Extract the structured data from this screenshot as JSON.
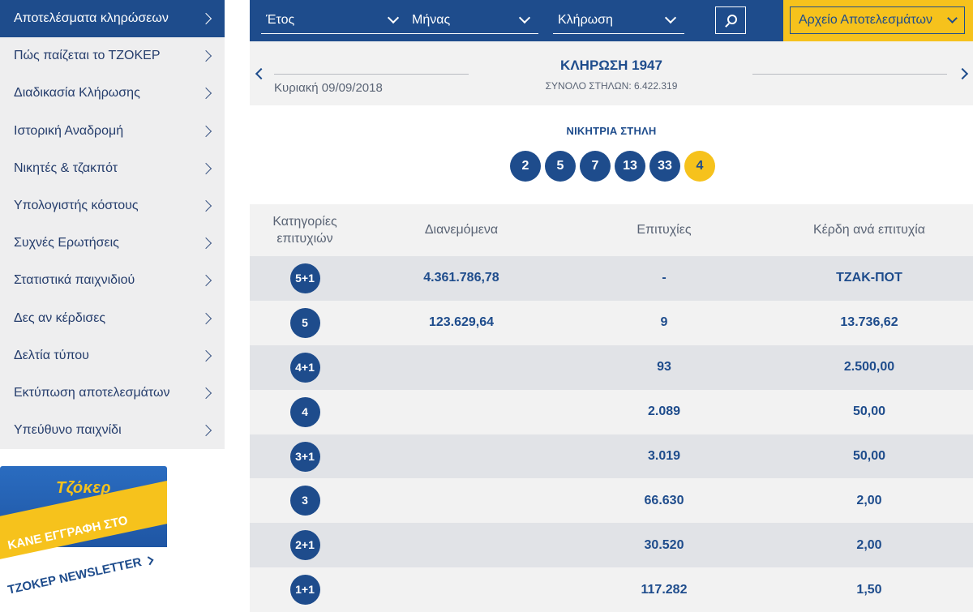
{
  "sidebar": {
    "items": [
      {
        "label": "Αποτελέσματα κληρώσεων",
        "active": true
      },
      {
        "label": "Πώς παίζεται το ΤΖΟΚΕΡ"
      },
      {
        "label": "Διαδικασία Κλήρωσης"
      },
      {
        "label": "Ιστορική Αναδρομή"
      },
      {
        "label": "Νικητές & τζακπότ"
      },
      {
        "label": "Υπολογιστής κόστους"
      },
      {
        "label": "Συχνές Ερωτήσεις"
      },
      {
        "label": "Στατιστικά παιχνιδιού"
      },
      {
        "label": "Δες αν κέρδισες"
      },
      {
        "label": "Δελτία τύπου"
      },
      {
        "label": "Εκτύπωση αποτελεσμάτων"
      },
      {
        "label": "Υπεύθυνο παιχνίδι"
      }
    ]
  },
  "banner": {
    "logo": "Τζόκερ",
    "line1": "ΚΑΝΕ ΕΓΓΡΑΦΗ ΣΤΟ",
    "line2": "ΤΖΟΚΕΡ NEWSLETTER"
  },
  "filters": {
    "year": "Έτος",
    "month": "Μήνας",
    "draw": "Κλήρωση",
    "archive": "Αρχείο Αποτελεσμάτων"
  },
  "draw": {
    "title": "ΚΛΗΡΩΣΗ 1947",
    "date": "Κυριακή 09/09/2018",
    "total": "ΣΥΝΟΛΟ ΣΤΗΛΩΝ: 6.422.319"
  },
  "winning": {
    "label": "ΝΙΚΗΤΡΙΑ ΣΤΗΛΗ",
    "numbers": [
      "2",
      "5",
      "7",
      "13",
      "33"
    ],
    "joker": "4"
  },
  "table": {
    "headers": {
      "category_line1": "Κατηγορίες",
      "category_line2": "επιτυχιών",
      "distributed": "Διανεμόμενα",
      "winners": "Επιτυχίες",
      "prize": "Κέρδη ανά επιτυχία"
    },
    "rows": [
      {
        "category": "5+1",
        "distributed": "4.361.786,78",
        "winners": "-",
        "prize": "ΤΖΑΚ-ΠΟΤ"
      },
      {
        "category": "5",
        "distributed": "123.629,64",
        "winners": "9",
        "prize": "13.736,62"
      },
      {
        "category": "4+1",
        "distributed": "",
        "winners": "93",
        "prize": "2.500,00"
      },
      {
        "category": "4",
        "distributed": "",
        "winners": "2.089",
        "prize": "50,00"
      },
      {
        "category": "3+1",
        "distributed": "",
        "winners": "3.019",
        "prize": "50,00"
      },
      {
        "category": "3",
        "distributed": "",
        "winners": "66.630",
        "prize": "2,00"
      },
      {
        "category": "2+1",
        "distributed": "",
        "winners": "30.520",
        "prize": "2,00"
      },
      {
        "category": "1+1",
        "distributed": "",
        "winners": "117.282",
        "prize": "1,50"
      }
    ]
  },
  "colors": {
    "brand_blue": "#1e4c8c",
    "brand_yellow": "#f6c21c"
  }
}
